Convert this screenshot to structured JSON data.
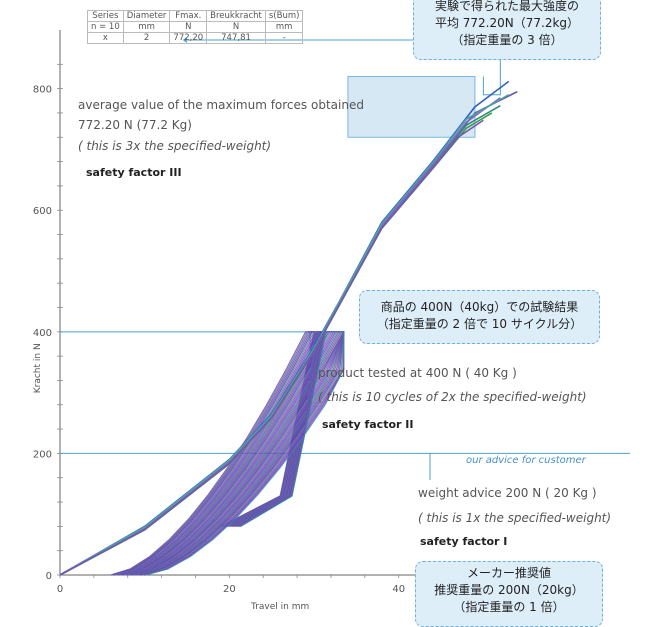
{
  "chart_data": {
    "type": "line",
    "xlabel": "Travel in mm",
    "ylabel": "Kracht in N",
    "xlim": [
      0,
      62
    ],
    "ylim": [
      0,
      880
    ],
    "x_ticks": [
      "0",
      "20",
      "40"
    ],
    "y_ticks": [
      "0",
      "200",
      "400",
      "600",
      "800"
    ],
    "reference_lines": [
      {
        "name": "safety factor III",
        "y": 772.2
      },
      {
        "name": "safety factor II",
        "y": 400
      },
      {
        "name": "safety factor I",
        "y": 200
      }
    ],
    "series": [
      {
        "color": "#2f5fbf",
        "x": [
          0,
          10,
          20,
          25,
          30,
          33,
          38,
          44,
          49,
          53
        ],
        "y": [
          0,
          80,
          190,
          265,
          375,
          450,
          580,
          680,
          770,
          812
        ]
      },
      {
        "color": "#6a4fa8",
        "x": [
          0,
          10,
          20,
          25,
          30,
          33,
          38,
          44,
          49,
          54
        ],
        "y": [
          0,
          78,
          188,
          262,
          372,
          448,
          576,
          676,
          760,
          795
        ]
      },
      {
        "color": "#2e8b7a",
        "x": [
          0,
          10,
          20,
          25,
          30,
          33,
          38,
          44,
          48,
          52
        ],
        "y": [
          0,
          76,
          185,
          260,
          370,
          446,
          572,
          672,
          740,
          772
        ]
      },
      {
        "color": "#3a9c4a",
        "x": [
          0,
          10,
          20,
          25,
          30,
          33,
          38,
          44,
          48,
          51
        ],
        "y": [
          0,
          74,
          183,
          258,
          368,
          444,
          570,
          668,
          735,
          760
        ]
      },
      {
        "color": "#8a5fc8",
        "x": [
          0,
          10,
          20,
          25,
          30,
          33,
          38,
          44,
          48,
          52
        ],
        "y": [
          0,
          77,
          186,
          261,
          371,
          447,
          574,
          674,
          745,
          785
        ]
      },
      {
        "color": "#4aa3a0",
        "x": [
          0,
          10,
          20,
          25,
          30,
          33,
          38,
          44,
          48,
          53
        ],
        "y": [
          0,
          79,
          189,
          263,
          373,
          449,
          578,
          678,
          750,
          790
        ]
      },
      {
        "color": "#7c52b8",
        "x": [
          0,
          10,
          20,
          25,
          30,
          33,
          38,
          44,
          47,
          50
        ],
        "y": [
          0,
          75,
          184,
          259,
          369,
          445,
          571,
          669,
          720,
          748
        ]
      }
    ]
  },
  "spec_table": {
    "rows": [
      [
        "Series",
        "Diameter",
        "Fmax.",
        "Breukkracht",
        "s(Bum)"
      ],
      [
        "n = 10",
        "mm",
        "N",
        "N",
        "mm"
      ],
      [
        "x",
        "2",
        "772,20",
        "747,81",
        "-"
      ]
    ]
  },
  "annotations": {
    "sf3": {
      "line1": "average value of the maximum forces obtained",
      "line2": "772.20 N    (77.2 Kg)",
      "line3": "( this is 3x the specified-weight)",
      "label": "safety factor III"
    },
    "sf2": {
      "line1": "product tested at   400 N   ( 40 Kg )",
      "line2": "( this is 10 cycles of 2x the specified-weight)",
      "label": "safety factor  II"
    },
    "sf1": {
      "advice": "our advice for customer",
      "line1": "weight advice   200 N   (  20 Kg )",
      "line2": "( this is 1x the specified-weight)",
      "label": "safety factor  I"
    }
  },
  "callouts": {
    "top": [
      "実験で得られた最大強度の",
      "平均 772.20N（77.2kg）",
      "（指定重量の 3 倍）"
    ],
    "middle": [
      "商品の 400N（40kg）での試験結果",
      "（指定重量の 2 倍で 10 サイクル分）"
    ],
    "bottom": [
      "メーカー推奨値",
      "推奨重量の 200N（20kg）",
      "（指定重量の 1 倍）"
    ]
  },
  "colors": {
    "ref_line": "#4aa0d8",
    "callout_bg": "#ddeef9",
    "callout_border": "#6fb0da",
    "band": "#c9e1f1"
  }
}
